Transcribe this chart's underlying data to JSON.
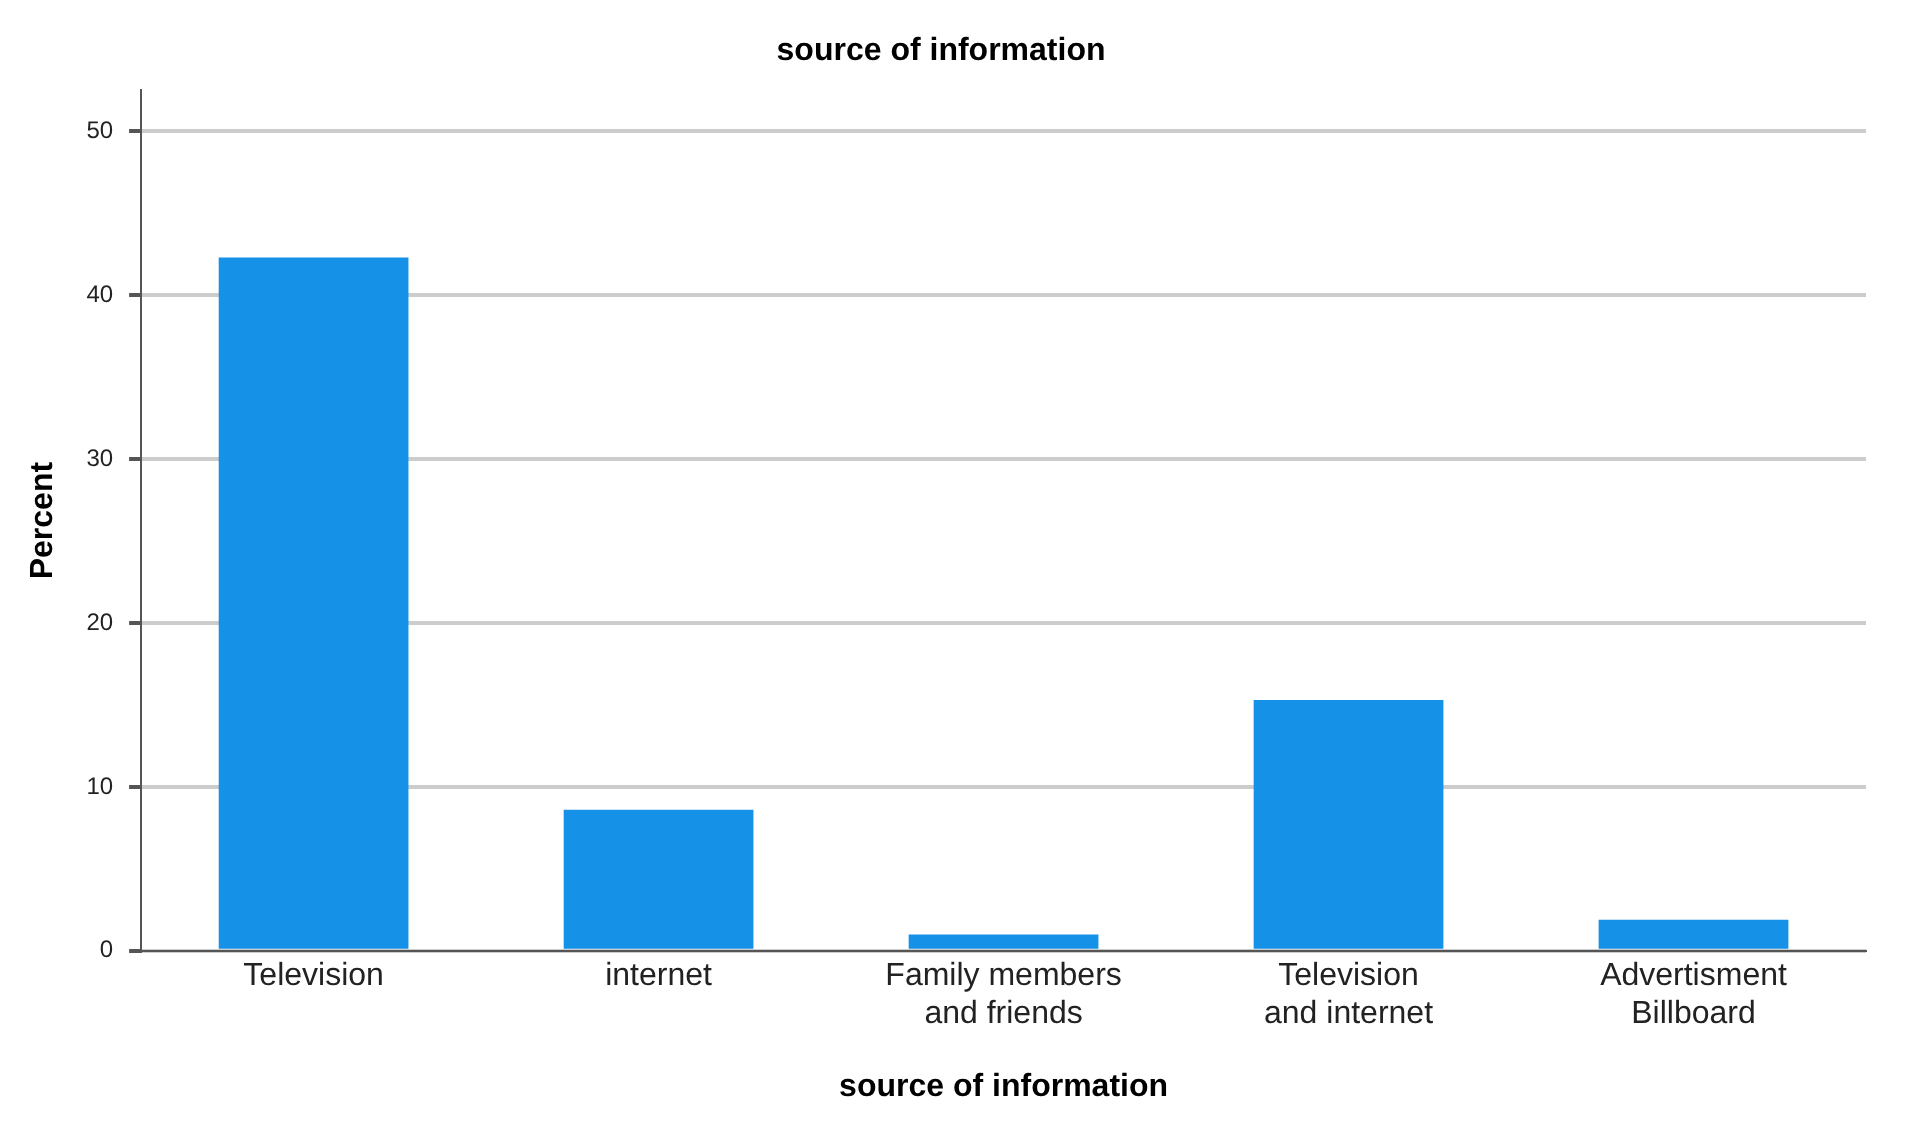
{
  "chart_data": {
    "type": "bar",
    "title": "source of information",
    "xlabel": "source of information",
    "ylabel": "Percent",
    "categories": [
      "Television",
      "internet",
      "Family members and friends",
      "Television and internet",
      "Advertisment Billboard"
    ],
    "values": [
      42.3,
      8.6,
      1.0,
      15.3,
      1.9
    ],
    "color": "#1591e8",
    "ylim": [
      0,
      52.5
    ],
    "yticks": [
      0,
      10,
      20,
      30,
      40,
      50
    ],
    "grid": "y",
    "legend": false
  }
}
